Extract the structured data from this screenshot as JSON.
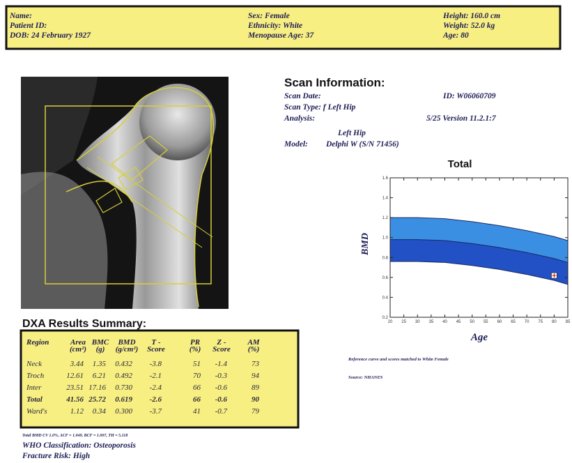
{
  "header": {
    "col1": [
      "Name:",
      "Patient ID:",
      "DOB: 24 February 1927"
    ],
    "col2": [
      "Sex: Female",
      "Ethnicity: White",
      "Menopause Age: 37"
    ],
    "col3": [
      "Height: 160.0 cm",
      "Weight: 52.0  kg",
      "Age: 80"
    ]
  },
  "scan_info": {
    "title": "Scan Information:",
    "scan_date": "Scan Date:",
    "id": "ID: W06060709",
    "scan_type": "Scan Type: f Left Hip",
    "analysis": "Analysis:",
    "version": "5/25 Version 11.2.1:7",
    "analysis_name": "Left Hip",
    "model_label": "Model:",
    "model": "Delphi W (S/N 71456)"
  },
  "chart_data": {
    "type": "area",
    "title": "Total",
    "ylabel": "BMD",
    "xlabel": "Age",
    "x": [
      20,
      30,
      40,
      50,
      60,
      70,
      80,
      85
    ],
    "series": [
      {
        "color": "#3b8fe3",
        "values": [
          1.2,
          1.2,
          1.19,
          1.16,
          1.12,
          1.07,
          1.01,
          0.97
        ]
      },
      {
        "color": "#2151c4",
        "values": [
          0.98,
          0.98,
          0.97,
          0.94,
          0.9,
          0.85,
          0.79,
          0.75
        ]
      },
      {
        "color": "#ffffff",
        "values": [
          0.76,
          0.76,
          0.75,
          0.72,
          0.68,
          0.63,
          0.57,
          0.53
        ]
      }
    ],
    "marker": {
      "x": 80,
      "y": 0.619
    },
    "xlim": [
      20,
      85
    ],
    "xticks": [
      20,
      25,
      30,
      35,
      40,
      45,
      50,
      55,
      60,
      65,
      70,
      75,
      80,
      85
    ],
    "ylim": [
      0.2,
      1.6
    ],
    "yticks": [
      1.6,
      1.4,
      1.2,
      {
        "value": 1,
        "label": "1.0"
      },
      0.8,
      0.6,
      0.4,
      0.2
    ]
  },
  "reference": {
    "note": "Reference curve and scores matched to White Female",
    "source": "Source: NHANES"
  },
  "results": {
    "title": "DXA Results Summary:",
    "columns": [
      [
        "Region"
      ],
      [
        "Area",
        "(cm²)"
      ],
      [
        "BMC",
        "(g)"
      ],
      [
        "BMD",
        "(g/cm²)"
      ],
      [
        "T -",
        "Score"
      ],
      [
        "PR",
        "(%)"
      ],
      [
        "Z -",
        "Score"
      ],
      [
        "AM",
        "(%)"
      ]
    ],
    "rows": [
      [
        "Neck",
        "3.44",
        "1.35",
        "0.432",
        "-3.8",
        "51",
        "-1.4",
        "73"
      ],
      [
        "Troch",
        "12.61",
        "6.21",
        "0.492",
        "-2.1",
        "70",
        "-0.3",
        "94"
      ],
      [
        "Inter",
        "23.51",
        "17.16",
        "0.730",
        "-2.4",
        "66",
        "-0.6",
        "89"
      ],
      [
        "Total",
        "41.56",
        "25.72",
        "0.619",
        "-2.6",
        "66",
        "-0.6",
        "90"
      ],
      [
        "Ward's",
        "1.12",
        "0.34",
        "0.300",
        "-3.7",
        "41",
        "-0.7",
        "79"
      ]
    ]
  },
  "footer": {
    "cv": "Total BMD CV 1.0%, ACF = 1.049, BCF = 1.007, TH = 5.118",
    "who": "WHO Classification: Osteoporosis",
    "risk": "Fracture Risk: High"
  }
}
